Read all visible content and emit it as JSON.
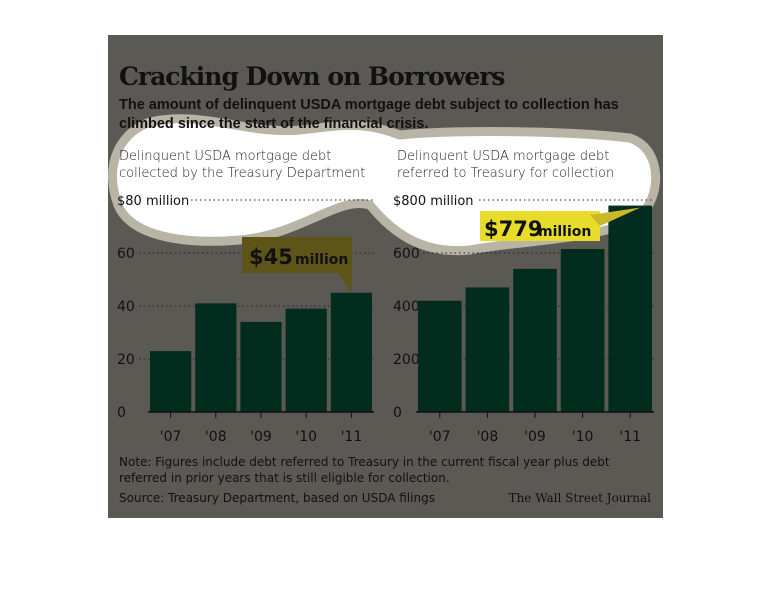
{
  "title": "Cracking Down on Borrowers",
  "subtitle": "The amount of delinquent USDA mortgage debt subject to collection has climbed since the start of the financial crisis.",
  "note": "Note: Figures include debt referred to Treasury in the current fiscal year plus debt referred in prior years that is still eligible for collection.",
  "source": "Source: Treasury Department, based on USDA filings",
  "credit": "The Wall Street Journal",
  "colors": {
    "bar": "#022d1e",
    "panel": "#5b5953",
    "callout_left": "#5e5418",
    "callout_right": "#e8dc2a"
  },
  "chart_data": [
    {
      "type": "bar",
      "title": "Delinquent USDA mortgage debt collected by the Treasury Department",
      "categories": [
        "'07",
        "'08",
        "'09",
        "'10",
        "'11"
      ],
      "values": [
        23,
        41,
        34,
        39,
        45
      ],
      "unit": "million $",
      "yticks": [
        "0",
        "20",
        "40",
        "60",
        "$80 million"
      ],
      "ytick_values": [
        0,
        20,
        40,
        60,
        80
      ],
      "ylim": [
        0,
        80
      ],
      "annotation": {
        "value": "$45",
        "unit": "million",
        "category": "'11"
      }
    },
    {
      "type": "bar",
      "title": "Delinquent USDA mortgage debt referred to Treasury for collection",
      "categories": [
        "'07",
        "'08",
        "'09",
        "'10",
        "'11"
      ],
      "values": [
        420,
        470,
        540,
        615,
        779
      ],
      "unit": "million $",
      "yticks": [
        "0",
        "200",
        "400",
        "600",
        "$800 million"
      ],
      "ytick_values": [
        0,
        200,
        400,
        600,
        800
      ],
      "ylim": [
        0,
        800
      ],
      "annotation": {
        "value": "$779",
        "unit": "million",
        "category": "'11"
      }
    }
  ]
}
